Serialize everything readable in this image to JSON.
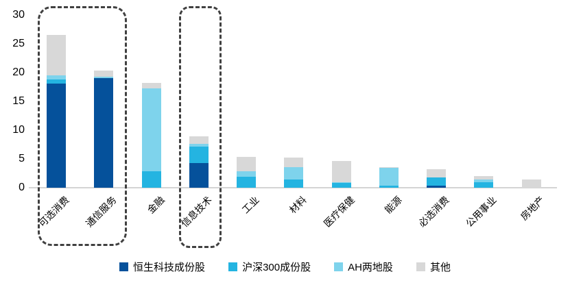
{
  "chart_data": {
    "type": "bar",
    "stacked": true,
    "title": "",
    "xlabel": "",
    "ylabel": "",
    "categories": [
      "可选消费",
      "通信服务",
      "金融",
      "信息技术",
      "工业",
      "材料",
      "医疗保健",
      "能源",
      "必选消费",
      "公用事业",
      "房地产"
    ],
    "series": [
      {
        "name": "恒生科技成份股",
        "color": "#05519b",
        "values": [
          18.1,
          19.0,
          0,
          4.3,
          0,
          0,
          0,
          0,
          0.4,
          0,
          0
        ]
      },
      {
        "name": "沪深300成份股",
        "color": "#24b4e1",
        "values": [
          0.7,
          0,
          2.9,
          2.8,
          1.9,
          1.4,
          0.8,
          0.4,
          1.4,
          0.9,
          0
        ]
      },
      {
        "name": "AH两地股",
        "color": "#7ed3ec",
        "values": [
          0.7,
          0.3,
          14.4,
          0.5,
          1.0,
          2.2,
          0.2,
          3.1,
          0,
          0.5,
          0
        ]
      },
      {
        "name": "其他",
        "color": "#d8d8d8",
        "values": [
          7.0,
          1.0,
          0.9,
          1.3,
          2.4,
          1.7,
          3.7,
          0.1,
          1.4,
          0.6,
          1.4
        ]
      }
    ],
    "totals": [
      26.5,
      20.3,
      18.2,
      8.9,
      5.3,
      5.3,
      4.7,
      3.6,
      3.2,
      2.0,
      1.4
    ],
    "ylim": [
      0,
      30
    ],
    "yticks": [
      0,
      5,
      10,
      15,
      20,
      25,
      30
    ],
    "grid": false,
    "legend_position": "bottom",
    "annotations": [
      {
        "type": "dashed-box",
        "around": [
          "可选消费",
          "通信服务"
        ]
      },
      {
        "type": "dashed-box",
        "around": [
          "信息技术"
        ]
      }
    ]
  }
}
